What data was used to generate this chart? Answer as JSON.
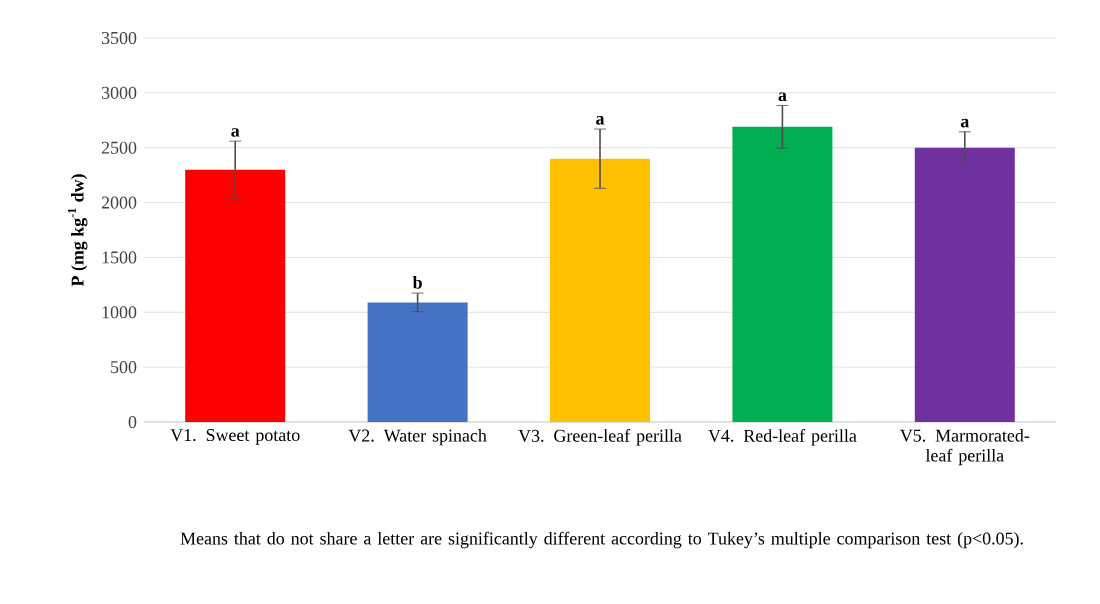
{
  "chart_data": {
    "type": "bar",
    "ylabel": "P (mg kg$^{-1}$ dw)",
    "categories": [
      "V1. Sweet potato",
      "V2. Water spinach",
      "V3. Green-leaf perilla",
      "V4. Red-leaf perilla",
      "V5. Marmorated-leaf perilla"
    ],
    "values": [
      2300,
      1090,
      2400,
      2690,
      2500
    ],
    "errors": [
      260,
      85,
      270,
      195,
      145
    ],
    "colors": [
      "#ff0000",
      "#4472c4",
      "#ffc000",
      "#00b050",
      "#7030a0"
    ],
    "ylim": [
      0,
      3500
    ],
    "yticks": [
      0,
      500,
      1000,
      1500,
      2000,
      2500,
      3000,
      3500
    ],
    "grid": "y",
    "annotations": [
      "a",
      "b",
      "a",
      "a",
      "a",
      "Means that do not share a letter are significantly different according to Tukey’s multiple comparison test (p<0.05)."
    ]
  }
}
